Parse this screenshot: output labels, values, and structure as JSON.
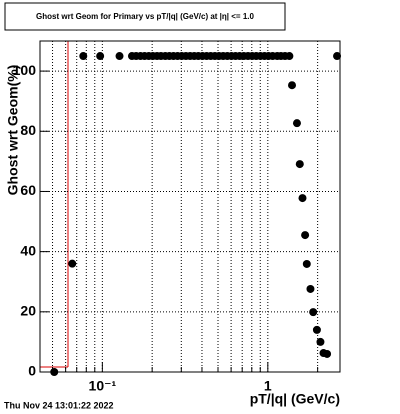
{
  "chart_data": {
    "type": "scatter",
    "title": "Ghost wrt Geom for Primary vs pT/|q| (GeV/c) at |η| <= 1.0",
    "x_label": "pT/|q| (GeV/c)",
    "y_label": "Ghost wrt Geom(%)",
    "timestamp": "Thu Nov 24 13:01:22 2022",
    "x_log": true,
    "grid": true,
    "color": "#000000",
    "xlim": [
      0.042,
      2.73
    ],
    "ylim": [
      0,
      110
    ],
    "xticks": [
      {
        "value": 0.1,
        "label": "10⁻¹"
      },
      1
    ],
    "xminor_ticks": [
      0.05,
      0.06,
      0.07,
      0.08,
      0.09,
      0.2,
      0.3,
      0.4,
      0.5,
      0.6,
      0.7,
      0.8,
      0.9,
      2
    ],
    "yticks": [
      0,
      20,
      40,
      60,
      80,
      100
    ],
    "x": [
      0.0512,
      0.0658,
      0.0767,
      0.097,
      0.127,
      0.151,
      0.16,
      0.17,
      0.18,
      0.191,
      0.202,
      0.214,
      0.226,
      0.24,
      0.254,
      0.269,
      0.285,
      0.302,
      0.32,
      0.339,
      0.359,
      0.38,
      0.403,
      0.427,
      0.452,
      0.479,
      0.507,
      0.537,
      0.569,
      0.603,
      0.638,
      0.676,
      0.716,
      0.759,
      0.804,
      0.851,
      0.902,
      0.955,
      1.01,
      1.07,
      1.14,
      1.2,
      1.27,
      1.35,
      1.4,
      1.5,
      1.56,
      1.62,
      1.68,
      1.72,
      1.81,
      1.88,
      1.98,
      2.08,
      2.17,
      2.28,
      2.62
    ],
    "values": [
      0,
      36,
      105,
      105,
      105,
      105,
      105,
      105,
      105,
      105,
      105,
      105,
      105,
      105,
      105,
      105,
      105,
      105,
      105,
      105,
      105,
      105,
      105,
      105,
      105,
      105,
      105,
      105,
      105,
      105,
      105,
      105,
      105,
      105,
      105,
      105,
      105,
      105,
      105,
      105,
      105,
      105,
      105,
      105,
      95.3,
      82.7,
      69.1,
      57.8,
      45.5,
      35.9,
      27.6,
      19.9,
      14,
      10,
      6.3,
      6,
      105
    ]
  }
}
